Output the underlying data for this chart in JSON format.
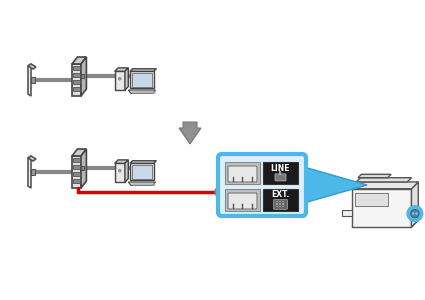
{
  "background_color": "#ffffff",
  "gray_cable_color": "#888888",
  "red_cable_color": "#dd0000",
  "blue_color": "#4ab8e8",
  "dark_box": "#1a1a1a",
  "text_line": "LINE",
  "text_ext": "EXT.",
  "wall_face": "#f0f0f0",
  "wall_edge": "#555555",
  "modem_front": "#e0e0e0",
  "modem_top": "#cccccc",
  "modem_side": "#b8b8b8",
  "computer_body": "#e8e8e8",
  "screen_color": "#c8d8e8",
  "arrow_gray": "#909090"
}
